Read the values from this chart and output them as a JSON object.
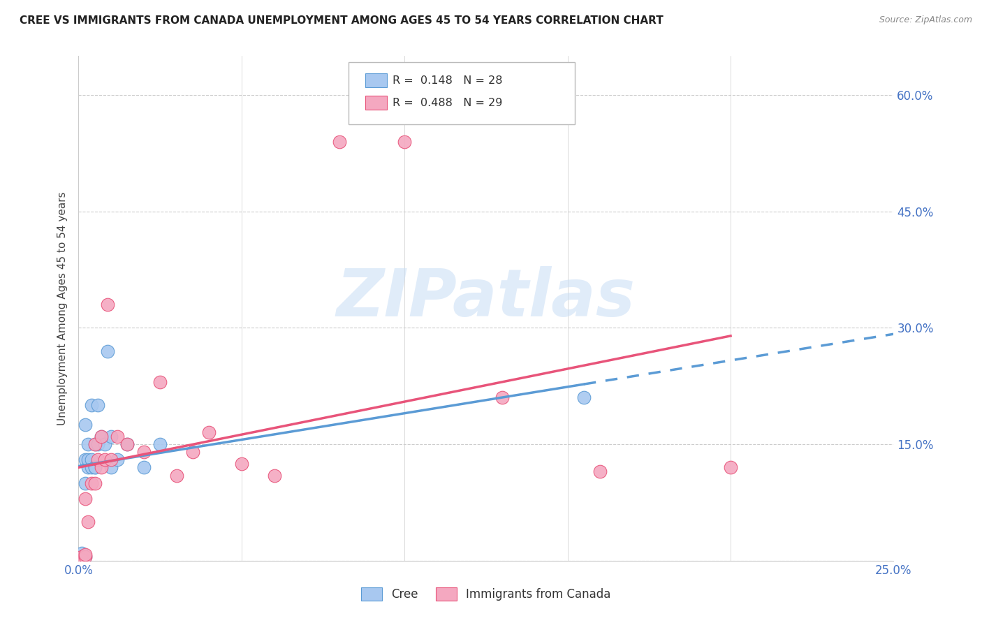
{
  "title": "CREE VS IMMIGRANTS FROM CANADA UNEMPLOYMENT AMONG AGES 45 TO 54 YEARS CORRELATION CHART",
  "source": "Source: ZipAtlas.com",
  "ylabel": "Unemployment Among Ages 45 to 54 years",
  "xlim": [
    0,
    0.25
  ],
  "ylim": [
    0,
    0.65
  ],
  "xticks": [
    0.0,
    0.05,
    0.1,
    0.15,
    0.2,
    0.25
  ],
  "xticklabels": [
    "0.0%",
    "",
    "",
    "",
    "",
    "25.0%"
  ],
  "yticks_right": [
    0.0,
    0.15,
    0.3,
    0.45,
    0.6
  ],
  "yticklabels_right": [
    "",
    "15.0%",
    "30.0%",
    "45.0%",
    "60.0%"
  ],
  "cree_R": 0.148,
  "cree_N": 28,
  "immigrants_R": 0.488,
  "immigrants_N": 29,
  "cree_color": "#A8C8F0",
  "immigrants_color": "#F4A8C0",
  "trend_cree_color": "#5B9BD5",
  "trend_immigrants_color": "#E8547A",
  "watermark_text": "ZIPatlas",
  "cree_x": [
    0.001,
    0.001,
    0.001,
    0.002,
    0.002,
    0.002,
    0.002,
    0.003,
    0.003,
    0.003,
    0.004,
    0.004,
    0.004,
    0.005,
    0.005,
    0.005,
    0.006,
    0.006,
    0.007,
    0.008,
    0.009,
    0.01,
    0.01,
    0.012,
    0.015,
    0.02,
    0.025,
    0.155
  ],
  "cree_y": [
    0.002,
    0.005,
    0.01,
    0.005,
    0.1,
    0.13,
    0.175,
    0.12,
    0.13,
    0.15,
    0.12,
    0.13,
    0.2,
    0.12,
    0.15,
    0.12,
    0.2,
    0.15,
    0.16,
    0.15,
    0.27,
    0.12,
    0.16,
    0.13,
    0.15,
    0.12,
    0.15,
    0.21
  ],
  "immigrants_x": [
    0.001,
    0.001,
    0.002,
    0.002,
    0.002,
    0.003,
    0.004,
    0.005,
    0.005,
    0.006,
    0.007,
    0.007,
    0.008,
    0.009,
    0.01,
    0.012,
    0.015,
    0.02,
    0.025,
    0.03,
    0.035,
    0.04,
    0.05,
    0.06,
    0.08,
    0.1,
    0.13,
    0.16,
    0.2
  ],
  "immigrants_y": [
    0.002,
    0.005,
    0.005,
    0.008,
    0.08,
    0.05,
    0.1,
    0.1,
    0.15,
    0.13,
    0.12,
    0.16,
    0.13,
    0.33,
    0.13,
    0.16,
    0.15,
    0.14,
    0.23,
    0.11,
    0.14,
    0.165,
    0.125,
    0.11,
    0.54,
    0.54,
    0.21,
    0.115,
    0.12
  ]
}
